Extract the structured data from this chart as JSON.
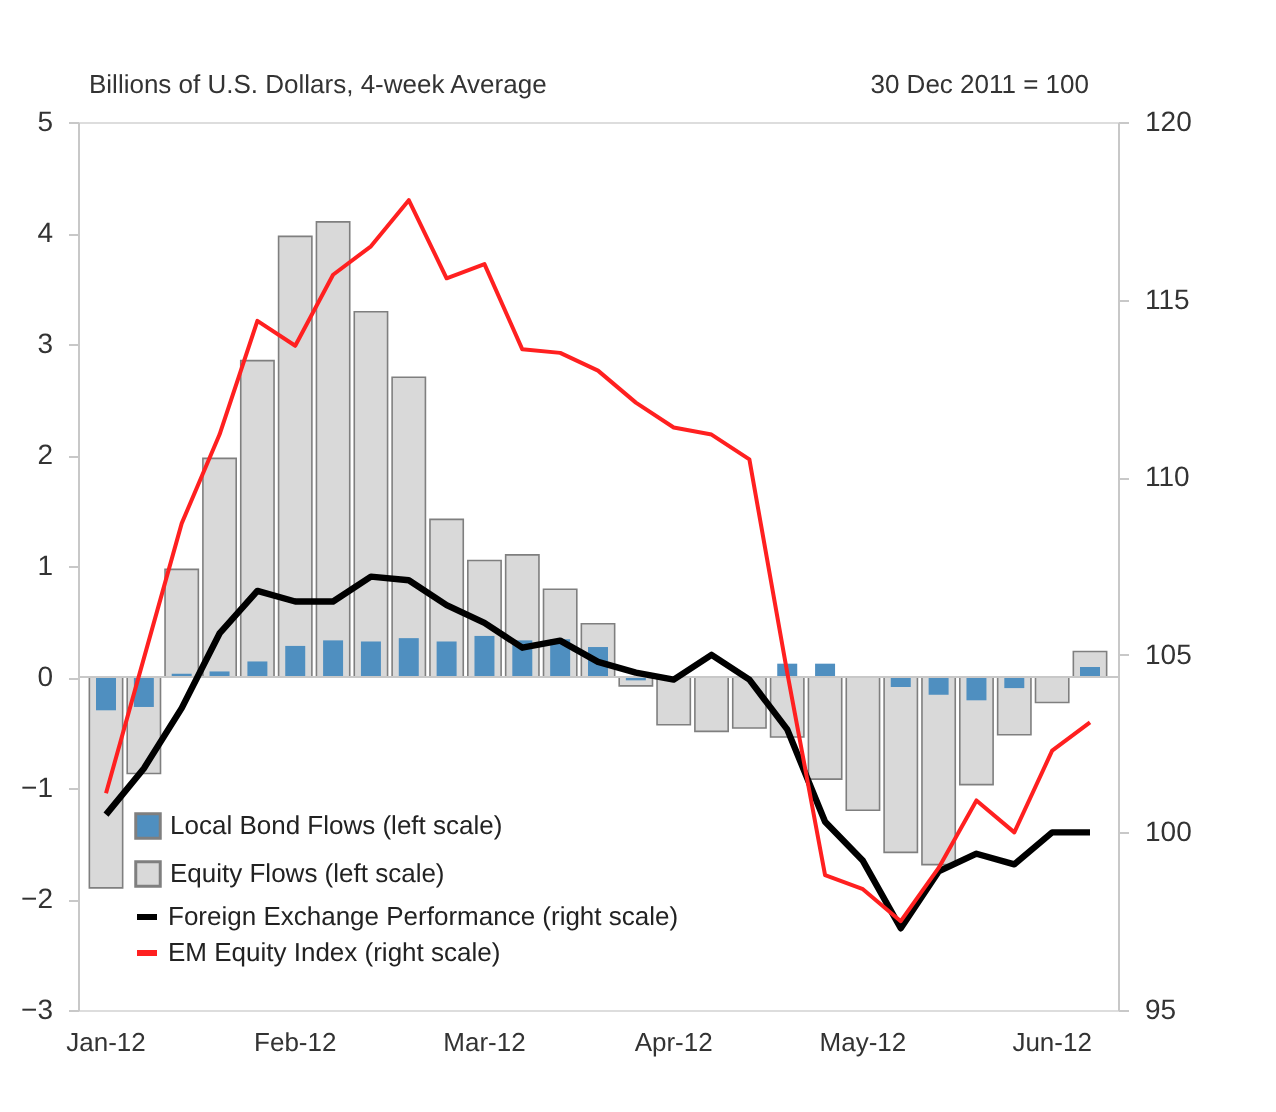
{
  "chart_data": {
    "type": "bar",
    "ylabel": "Billions of U.S. Dollars, 4-week Average",
    "y2label": "30 Dec 2011 = 100",
    "categories": [
      "Jan-12",
      null,
      null,
      null,
      null,
      "Feb-12",
      null,
      null,
      null,
      null,
      "Mar-12",
      null,
      null,
      null,
      null,
      "Apr-12",
      null,
      null,
      null,
      null,
      "May-12",
      null,
      null,
      null,
      null,
      "Jun-12",
      null
    ],
    "series": [
      {
        "name": "Local Bond Flows (left scale)",
        "color": "#4f8fc0",
        "values": [
          -0.3,
          -0.27,
          0.03,
          0.05,
          0.14,
          0.28,
          0.33,
          0.32,
          0.35,
          0.32,
          0.37,
          0.33,
          0.34,
          0.27,
          -0.03,
          null,
          null,
          null,
          0.12,
          0.12,
          null,
          -0.09,
          -0.16,
          -0.21,
          -0.1,
          0,
          0.09
        ]
      },
      {
        "name": "Equity Flows (left scale)",
        "color": "#d9d9d9",
        "values": [
          -1.9,
          -0.87,
          0.97,
          1.97,
          2.85,
          3.97,
          4.1,
          3.29,
          2.7,
          1.42,
          1.05,
          1.1,
          0.79,
          0.48,
          -0.08,
          -0.43,
          -0.49,
          -0.46,
          -0.54,
          -0.92,
          -1.2,
          -1.58,
          -1.69,
          -0.97,
          -0.52,
          -0.23,
          0.23
        ]
      },
      {
        "name": "Foreign Exchange Performance (right scale)",
        "type": "line",
        "axis": "y2",
        "color": "#000000",
        "values": [
          100.5,
          101.8,
          103.5,
          105.6,
          106.8,
          106.5,
          106.5,
          107.2,
          107.1,
          106.4,
          105.9,
          105.2,
          105.4,
          104.8,
          104.5,
          104.3,
          105.0,
          104.3,
          102.9,
          100.3,
          99.2,
          97.3,
          98.9,
          99.4,
          99.1,
          100.0,
          100.0
        ]
      },
      {
        "name": "EM Equity Index (right scale)",
        "type": "line",
        "axis": "y2",
        "color": "#ff2020",
        "values": [
          101.1,
          104.9,
          108.7,
          111.2,
          114.4,
          113.7,
          115.7,
          116.5,
          117.8,
          115.6,
          116.0,
          113.6,
          113.5,
          113.0,
          112.1,
          111.4,
          111.2,
          110.5,
          104.5,
          98.8,
          98.4,
          97.5,
          99.0,
          100.9,
          100.0,
          102.3,
          103.1
        ]
      }
    ],
    "ylim": [
      -3,
      5
    ],
    "yticks": [
      -3,
      -2,
      -1,
      0,
      1,
      2,
      3,
      4,
      5
    ],
    "y2lim": [
      95,
      120
    ],
    "y2ticks": [
      95,
      100,
      105,
      110,
      115,
      120
    ],
    "ref_lines": [
      {
        "axis": "y",
        "value": 0,
        "color": "#c8c8c8"
      }
    ],
    "grid": false,
    "legend": "bottom left",
    "line_style": "solid"
  }
}
